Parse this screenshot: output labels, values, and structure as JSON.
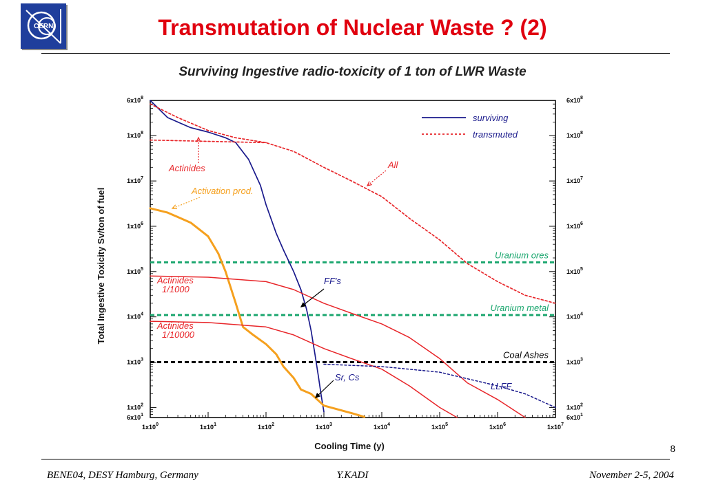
{
  "slide": {
    "title": "Transmutation of Nuclear Waste ? (2)",
    "logo_text": "CERN",
    "page_number": "8"
  },
  "footer": {
    "left": "BENE04, DESY Hamburg, Germany",
    "center": "Y.KADI",
    "right": "November 2-5, 2004"
  },
  "chart_data": {
    "type": "line",
    "title": "Surviving Ingestive radio-toxicity of 1 ton of LWR Waste",
    "xlabel": "Cooling Time (y)",
    "ylabel": "Total Ingestive Toxicity Sv/ton of fuel",
    "x_scale": "log",
    "y_scale": "log",
    "xlim": [
      1,
      10000000
    ],
    "ylim": [
      60,
      600000000
    ],
    "x_ticks": [
      {
        "value": 1,
        "label": "1x10",
        "exp": "0"
      },
      {
        "value": 10,
        "label": "1x10",
        "exp": "1"
      },
      {
        "value": 100,
        "label": "1x10",
        "exp": "2"
      },
      {
        "value": 1000,
        "label": "1x10",
        "exp": "3"
      },
      {
        "value": 10000,
        "label": "1x10",
        "exp": "4"
      },
      {
        "value": 100000,
        "label": "1x10",
        "exp": "5"
      },
      {
        "value": 1000000,
        "label": "1x10",
        "exp": "6"
      },
      {
        "value": 10000000,
        "label": "1x10",
        "exp": "7"
      }
    ],
    "y_ticks": [
      {
        "value": 60,
        "label": "6x10",
        "exp": "1"
      },
      {
        "value": 100,
        "label": "1x10",
        "exp": "2"
      },
      {
        "value": 1000,
        "label": "1x10",
        "exp": "3"
      },
      {
        "value": 10000,
        "label": "1x10",
        "exp": "4"
      },
      {
        "value": 100000,
        "label": "1x10",
        "exp": "5"
      },
      {
        "value": 1000000,
        "label": "1x10",
        "exp": "6"
      },
      {
        "value": 10000000,
        "label": "1x10",
        "exp": "7"
      },
      {
        "value": 100000000,
        "label": "1x10",
        "exp": "8"
      },
      {
        "value": 600000000,
        "label": "6x10",
        "exp": "8"
      }
    ],
    "legend": {
      "placement": "top-right",
      "entries": [
        {
          "label": "surviving",
          "color": "#1a1a8c",
          "style": "solid"
        },
        {
          "label": "transmuted",
          "color": "#e8262a",
          "style": "dotted"
        }
      ]
    },
    "series": [
      {
        "key": "all_surviving",
        "color": "#1a1a8c",
        "style": "solid",
        "width": 1.7,
        "points": [
          [
            1,
            600000000
          ],
          [
            2,
            250000000
          ],
          [
            5,
            150000000
          ],
          [
            10,
            120000000
          ],
          [
            20,
            90000000
          ],
          [
            30,
            70000000
          ],
          [
            50,
            30000000
          ],
          [
            80,
            8000000
          ],
          [
            100,
            3000000
          ],
          [
            150,
            700000
          ],
          [
            200,
            300000
          ],
          [
            300,
            100000
          ],
          [
            400,
            40000
          ],
          [
            500,
            15000
          ],
          [
            600,
            5000
          ],
          [
            700,
            1500
          ],
          [
            800,
            500
          ],
          [
            900,
            180
          ],
          [
            1000,
            80
          ]
        ]
      },
      {
        "key": "all_transmuted",
        "color": "#e8262a",
        "style": "dotted",
        "width": 1.7,
        "points": [
          [
            1,
            500000000
          ],
          [
            3,
            250000000
          ],
          [
            10,
            130000000
          ],
          [
            30,
            90000000
          ],
          [
            100,
            70000000
          ],
          [
            300,
            45000000
          ],
          [
            1000,
            20000000
          ],
          [
            3000,
            10000000
          ],
          [
            10000,
            4500000
          ],
          [
            30000,
            1500000
          ],
          [
            100000,
            500000
          ],
          [
            300000,
            150000
          ],
          [
            1000000,
            60000
          ],
          [
            3000000,
            30000
          ],
          [
            10000000,
            20000
          ]
        ]
      },
      {
        "key": "actinides_flat",
        "color": "#e8262a",
        "style": "dotted",
        "width": 1.7,
        "points": [
          [
            1,
            80000000
          ],
          [
            10,
            75000000
          ],
          [
            100,
            70000000
          ]
        ]
      },
      {
        "key": "activation_products",
        "color": "#f5a01e",
        "style": "solid",
        "width": 3,
        "points": [
          [
            1,
            2500000
          ],
          [
            2,
            2000000
          ],
          [
            5,
            1200000
          ],
          [
            10,
            600000
          ],
          [
            15,
            250000
          ],
          [
            20,
            100000
          ],
          [
            30,
            20000
          ],
          [
            40,
            6000
          ],
          [
            60,
            4000
          ],
          [
            100,
            2500
          ],
          [
            150,
            1500
          ],
          [
            200,
            800
          ],
          [
            300,
            450
          ],
          [
            400,
            250
          ],
          [
            600,
            200
          ],
          [
            1000,
            110
          ],
          [
            3000,
            75
          ],
          [
            5000,
            62
          ]
        ]
      },
      {
        "key": "actinides_1000",
        "color": "#e8262a",
        "style": "solid",
        "width": 1.5,
        "points": [
          [
            1,
            80000
          ],
          [
            10,
            75000
          ],
          [
            100,
            60000
          ],
          [
            300,
            40000
          ],
          [
            1000,
            20000
          ],
          [
            3000,
            12000
          ],
          [
            10000,
            7000
          ],
          [
            30000,
            3500
          ],
          [
            100000,
            1200
          ],
          [
            300000,
            350
          ],
          [
            1000000,
            150
          ],
          [
            3000000,
            60
          ]
        ]
      },
      {
        "key": "actinides_10000",
        "color": "#e8262a",
        "style": "solid",
        "width": 1.5,
        "points": [
          [
            1,
            8000
          ],
          [
            10,
            7500
          ],
          [
            100,
            6000
          ],
          [
            300,
            4000
          ],
          [
            1000,
            2000
          ],
          [
            3000,
            1200
          ],
          [
            10000,
            700
          ],
          [
            30000,
            300
          ],
          [
            100000,
            100
          ],
          [
            200000,
            60
          ]
        ]
      },
      {
        "key": "llff",
        "color": "#1a1a8c",
        "style": "dotted",
        "width": 1.5,
        "points": [
          [
            1000,
            900
          ],
          [
            3000,
            850
          ],
          [
            10000,
            800
          ],
          [
            100000,
            600
          ],
          [
            1000000,
            300
          ],
          [
            3000000,
            200
          ],
          [
            10000000,
            100
          ]
        ]
      }
    ],
    "reference_lines": [
      {
        "label": "Uranium ores",
        "value": 160000,
        "color": "#1aa66e"
      },
      {
        "label": "Uranium metal",
        "value": 11000,
        "color": "#1aa66e"
      },
      {
        "label": "Coal Ashes",
        "value": 1000,
        "color": "#000000"
      }
    ],
    "annotations": [
      {
        "lines": [
          "Actinides"
        ],
        "color": "#e8262a"
      },
      {
        "lines": [
          "Activation prod."
        ],
        "color": "#f5a01e"
      },
      {
        "lines": [
          "All"
        ],
        "color": "#e8262a"
      },
      {
        "lines": [
          "Actinides",
          "1/1000"
        ],
        "color": "#e8262a"
      },
      {
        "lines": [
          "Actinides",
          "1/10000"
        ],
        "color": "#e8262a"
      },
      {
        "lines": [
          "FF's"
        ],
        "color": "#1a1a8c"
      },
      {
        "lines": [
          "Sr, Cs"
        ],
        "color": "#1a1a8c"
      },
      {
        "lines": [
          "LLFF"
        ],
        "color": "#1a1a8c"
      }
    ]
  }
}
